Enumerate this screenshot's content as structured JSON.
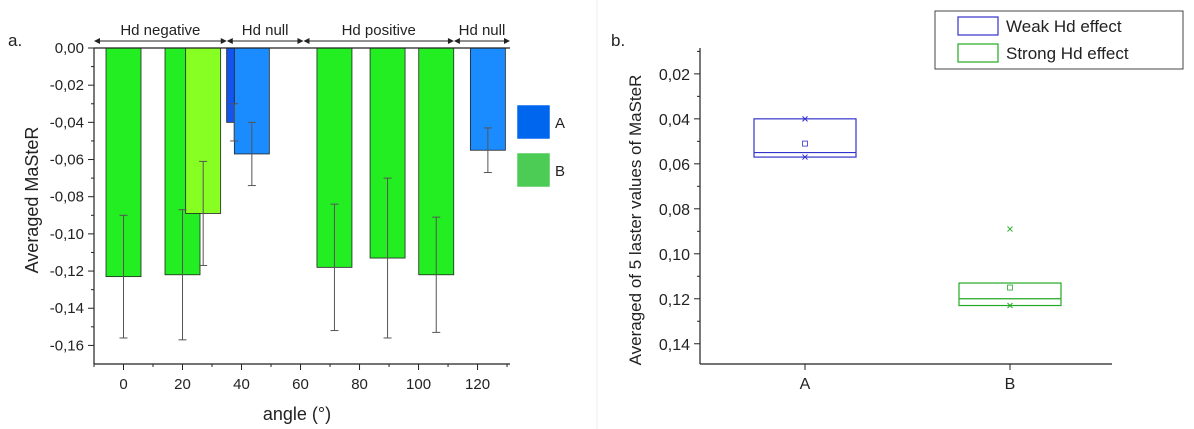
{
  "chart_data": [
    {
      "panel_label": "a.",
      "type": "bar",
      "xlabel": "angle (°)",
      "ylabel": "Averaged MaSteR",
      "xlim": [
        -10,
        131
      ],
      "ylim": [
        -0.17,
        0.0
      ],
      "xticks": [
        "0",
        "20",
        "40",
        "60",
        "80",
        "100",
        "120"
      ],
      "yticks": [
        "0,00",
        "-0,02",
        "-0,04",
        "-0,06",
        "-0,08",
        "-0,10",
        "-0,12",
        "-0,14",
        "-0,16"
      ],
      "regions": [
        {
          "label": "Hd negative",
          "x_start": -10,
          "x_end": 35
        },
        {
          "label": "Hd null",
          "x_start": 35,
          "x_end": 61
        },
        {
          "label": "Hd positive",
          "x_start": 61,
          "x_end": 112
        },
        {
          "label": "Hd null",
          "x_start": 112,
          "x_end": 131
        }
      ],
      "legend": [
        {
          "name": "A",
          "color": "#0066ee"
        },
        {
          "name": "B",
          "color": "#4dcc55"
        }
      ],
      "bars": [
        {
          "x": 0,
          "value": -0.123,
          "err": 0.033,
          "color": "#22ee22"
        },
        {
          "x": 20,
          "value": -0.122,
          "err": 0.035,
          "color": "#22ee22"
        },
        {
          "x": 27,
          "value": -0.089,
          "err": 0.028,
          "color": "#88ff22"
        },
        {
          "x": 37.5,
          "value": -0.04,
          "err": 0.01,
          "color": "#1155ee"
        },
        {
          "x": 43.5,
          "value": -0.057,
          "err": 0.017,
          "color": "#1a8cff"
        },
        {
          "x": 71.5,
          "value": -0.118,
          "err": 0.034,
          "color": "#22ee22"
        },
        {
          "x": 89.5,
          "value": -0.113,
          "err": 0.043,
          "color": "#22ee22"
        },
        {
          "x": 106,
          "value": -0.122,
          "err": 0.031,
          "color": "#22ee22"
        },
        {
          "x": 123.5,
          "value": -0.055,
          "err": 0.012,
          "color": "#1a8cff"
        }
      ]
    },
    {
      "panel_label": "b.",
      "type": "box",
      "ylabel": "Averaged of 5 laster values of MaSteR",
      "categories": [
        "A",
        "B"
      ],
      "ylim": [
        0.0085,
        0.149
      ],
      "y_inverted": true,
      "yticks": [
        "0,02",
        "0,04",
        "0,06",
        "0,08",
        "0,10",
        "0,12",
        "0,14"
      ],
      "legend": [
        {
          "name": "Weak Hd effect",
          "color": "#3333cc"
        },
        {
          "name": "Strong Hd effect",
          "color": "#22aa22"
        }
      ],
      "series": [
        {
          "name": "Weak Hd effect",
          "category": "A",
          "q1": 0.04,
          "median": 0.055,
          "q3": 0.057,
          "mean": 0.051,
          "min": 0.04,
          "max": 0.057,
          "color": "#3333cc"
        },
        {
          "name": "Strong Hd effect",
          "category": "B",
          "q1": 0.113,
          "median": 0.12,
          "q3": 0.123,
          "mean": 0.115,
          "min": 0.089,
          "max": 0.123,
          "color": "#22aa22"
        }
      ]
    }
  ]
}
